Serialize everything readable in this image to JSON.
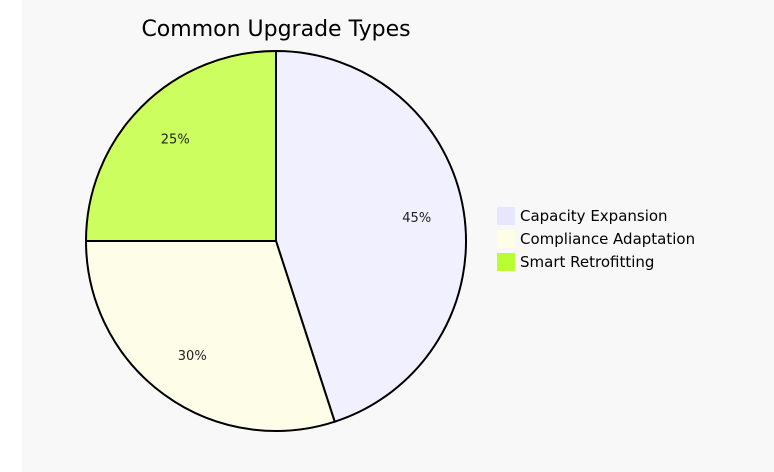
{
  "chart_data": {
    "type": "pie",
    "title": "Common Upgrade Types",
    "categories": [
      "Capacity Expansion",
      "Compliance Adaptation",
      "Smart Retrofitting"
    ],
    "values": [
      45,
      30,
      25
    ],
    "labels": [
      "45%",
      "30%",
      "25%"
    ],
    "colors": [
      "#f0f0fe",
      "#fefee8",
      "#cdfe5f"
    ],
    "legend_colors": [
      "#e6e6fd",
      "#fefee6",
      "#b9fe35"
    ],
    "start_angle": "12 o'clock",
    "direction": "clockwise",
    "legend_position": "right"
  }
}
